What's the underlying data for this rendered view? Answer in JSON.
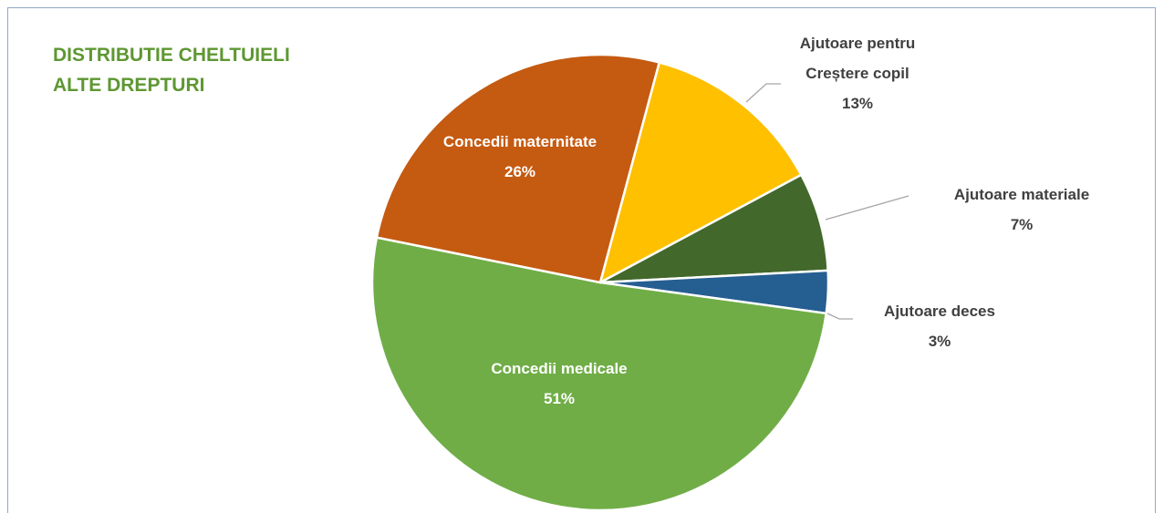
{
  "chart_data": {
    "type": "pie",
    "title": "DISTRIBUTIE CHELTUIELI ALTE DREPTURI",
    "categories": [
      "Ajutoare pentru Creștere copil",
      "Ajutoare materiale",
      "Ajutoare deces",
      "Concedii medicale",
      "Concedii maternitate"
    ],
    "values": [
      13,
      7,
      3,
      51,
      26
    ],
    "value_labels": [
      "13%",
      "7%",
      "3%",
      "51%",
      "26%"
    ],
    "colors": [
      "#ffc000",
      "#43682b",
      "#255e91",
      "#70ad47",
      "#c55a11"
    ]
  }
}
